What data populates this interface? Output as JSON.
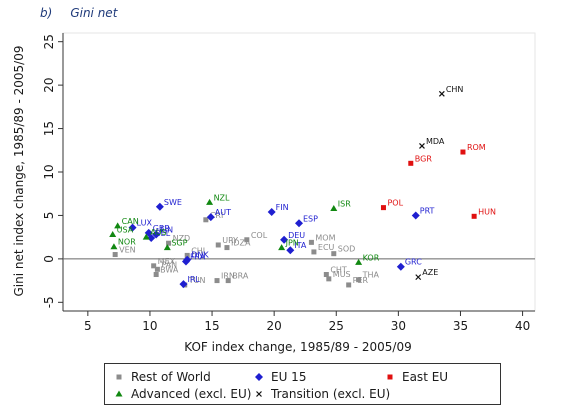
{
  "panel": {
    "letter": "b)",
    "title": "Gini net"
  },
  "chart_data": {
    "type": "scatter",
    "title": "Gini net",
    "xlabel": "KOF index change, 1985/89 - 2005/09",
    "ylabel": "Gini net index change, 1985/89 - 2005/09",
    "xlim": [
      3,
      41
    ],
    "ylim": [
      -6,
      26
    ],
    "xticks": [
      5,
      10,
      15,
      20,
      25,
      30,
      35,
      40
    ],
    "yticks": [
      -5,
      0,
      5,
      10,
      15,
      20,
      25
    ],
    "zero_line": true,
    "grid": false,
    "legend_position": "bottom",
    "series": [
      {
        "name": "Rest of World",
        "marker": "square",
        "color": "#8c8c8c",
        "label_color": "#8c8c8c",
        "points": [
          {
            "x": 7.2,
            "y": 0.5,
            "label": "VEN"
          },
          {
            "x": 10.3,
            "y": -0.8,
            "label": "MEX"
          },
          {
            "x": 10.6,
            "y": -1.2,
            "label": "PAN"
          },
          {
            "x": 10.5,
            "y": -1.8,
            "label": "BWA"
          },
          {
            "x": 11.5,
            "y": 1.8,
            "label": "NZD"
          },
          {
            "x": 12.8,
            "y": -3.0,
            "label": "TUN"
          },
          {
            "x": 13.0,
            "y": 0.4,
            "label": "CHL"
          },
          {
            "x": 14.5,
            "y": 4.5,
            "label": "CRI"
          },
          {
            "x": 15.5,
            "y": 1.6,
            "label": "URY"
          },
          {
            "x": 16.2,
            "y": 1.3,
            "label": "IDZA"
          },
          {
            "x": 17.8,
            "y": 2.2,
            "label": "COL"
          },
          {
            "x": 15.4,
            "y": -2.5,
            "label": "IRN"
          },
          {
            "x": 16.3,
            "y": -2.5,
            "label": "BRA"
          },
          {
            "x": 23.0,
            "y": 1.9,
            "label": "MOM"
          },
          {
            "x": 23.2,
            "y": 0.8,
            "label": "ECU"
          },
          {
            "x": 24.8,
            "y": 0.6,
            "label": "SOD"
          },
          {
            "x": 24.2,
            "y": -1.8,
            "label": "CHT"
          },
          {
            "x": 24.4,
            "y": -2.3,
            "label": "MUS"
          },
          {
            "x": 26.0,
            "y": -3.0,
            "label": "PER"
          },
          {
            "x": 26.8,
            "y": -2.4,
            "label": "THA"
          }
        ]
      },
      {
        "name": "EU 15",
        "marker": "diamond",
        "color": "#1f1fd0",
        "label_color": "#1f1fd0",
        "points": [
          {
            "x": 10.8,
            "y": 6.0,
            "label": "SWE"
          },
          {
            "x": 8.6,
            "y": 3.6,
            "label": "LUX"
          },
          {
            "x": 9.9,
            "y": 3.0,
            "label": "GBR"
          },
          {
            "x": 10.5,
            "y": 2.8,
            "label": "FIN"
          },
          {
            "x": 10.1,
            "y": 2.4,
            "label": "BEL"
          },
          {
            "x": 14.9,
            "y": 4.8,
            "label": "AUT"
          },
          {
            "x": 13.0,
            "y": -0.1,
            "label": "DNK"
          },
          {
            "x": 12.9,
            "y": -0.3,
            "label": "FRA"
          },
          {
            "x": 12.7,
            "y": -2.9,
            "label": "IRL"
          },
          {
            "x": 19.8,
            "y": 5.4,
            "label": "FIN"
          },
          {
            "x": 22.0,
            "y": 4.1,
            "label": "ESP"
          },
          {
            "x": 20.8,
            "y": 2.2,
            "label": "DEU"
          },
          {
            "x": 21.3,
            "y": 1.0,
            "label": "ITA"
          },
          {
            "x": 31.4,
            "y": 5.0,
            "label": "PRT"
          },
          {
            "x": 30.2,
            "y": -0.9,
            "label": "GRC"
          }
        ]
      },
      {
        "name": "East EU",
        "marker": "square",
        "color": "#e01010",
        "label_color": "#e01010",
        "points": [
          {
            "x": 35.2,
            "y": 12.3,
            "label": "ROM"
          },
          {
            "x": 31.0,
            "y": 11.0,
            "label": "BGR"
          },
          {
            "x": 28.8,
            "y": 5.9,
            "label": "POL"
          },
          {
            "x": 36.1,
            "y": 4.9,
            "label": "HUN"
          }
        ]
      },
      {
        "name": "Advanced (excl. EU)",
        "marker": "triangle",
        "color": "#118811",
        "label_color": "#118811",
        "points": [
          {
            "x": 7.4,
            "y": 3.8,
            "label": "CAN"
          },
          {
            "x": 7.0,
            "y": 2.8,
            "label": "USA"
          },
          {
            "x": 7.1,
            "y": 1.4,
            "label": "NOR"
          },
          {
            "x": 9.7,
            "y": 2.5,
            "label": "AUS"
          },
          {
            "x": 11.4,
            "y": 1.3,
            "label": "SGP"
          },
          {
            "x": 14.8,
            "y": 6.5,
            "label": "NZL"
          },
          {
            "x": 20.6,
            "y": 1.3,
            "label": "JPN"
          },
          {
            "x": 24.8,
            "y": 5.8,
            "label": "ISR"
          },
          {
            "x": 26.8,
            "y": -0.4,
            "label": "KOR"
          }
        ]
      },
      {
        "name": "Transition (excl. EU)",
        "marker": "x",
        "color": "#111111",
        "label_color": "#111111",
        "points": [
          {
            "x": 33.5,
            "y": 19.0,
            "label": "CHN"
          },
          {
            "x": 31.9,
            "y": 13.0,
            "label": "MDA"
          },
          {
            "x": 31.6,
            "y": -2.1,
            "label": "AZE"
          }
        ]
      }
    ]
  }
}
